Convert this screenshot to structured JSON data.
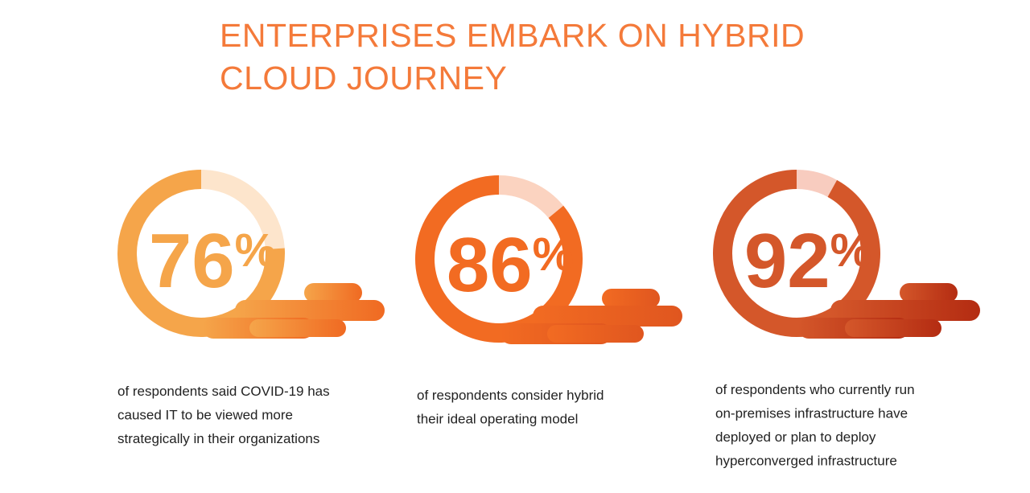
{
  "header": {
    "title_lines": [
      "ENTERPRISES EMBARK ON HYBRID",
      "CLOUD JOURNEY"
    ]
  },
  "stats": [
    {
      "value": 76,
      "unit": "%",
      "color": "#f5a54a",
      "track_color": "#fde5cc",
      "text_lines": [
        "of respondents said COVID-19 has",
        "caused IT to be viewed more",
        "strategically in their organizations"
      ]
    },
    {
      "value": 86,
      "unit": "%",
      "color": "#f26b22",
      "track_color": "#fbd3c0",
      "text_lines": [
        "of respondents consider hybrid",
        "their ideal operating model"
      ]
    },
    {
      "value": 92,
      "unit": "%",
      "color": "#d4572a",
      "track_color": "#f8ccbf",
      "text_lines": [
        "of respondents who currently run",
        "on-premises infrastructure have",
        "deployed or plan to deploy",
        "hyperconverged infrastructure"
      ]
    }
  ]
}
